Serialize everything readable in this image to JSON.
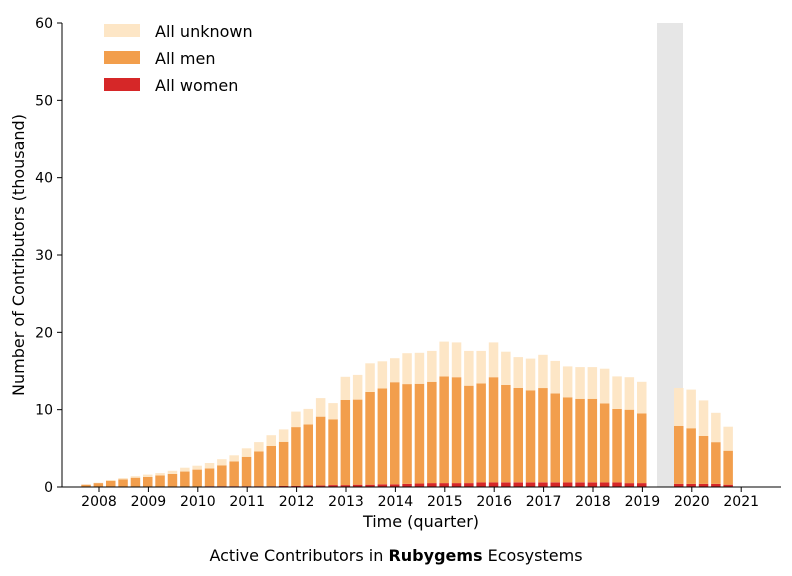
{
  "caption": {
    "prefix": "Active Contributors in ",
    "ecosystem": "Rubygems",
    "suffix": " Ecosystems"
  },
  "chart_data": {
    "type": "bar",
    "stacked": true,
    "xlabel": "Time (quarter)",
    "ylabel": "Number of Contributors (thousand)",
    "ylim": [
      0,
      60
    ],
    "yticks": [
      0,
      10,
      20,
      30,
      40,
      50,
      60
    ],
    "xticks": [
      "2008",
      "2009",
      "2010",
      "2011",
      "2012",
      "2013",
      "2014",
      "2015",
      "2016",
      "2017",
      "2018",
      "2019",
      "2020",
      "2021"
    ],
    "grid": false,
    "legend_position": "top-left",
    "shaded_gap": {
      "from": "2019-Q2",
      "to": "2019-Q4"
    },
    "categories": [
      "2008-Q1",
      "2008-Q2",
      "2008-Q3",
      "2008-Q4",
      "2009-Q1",
      "2009-Q2",
      "2009-Q3",
      "2009-Q4",
      "2010-Q1",
      "2010-Q2",
      "2010-Q3",
      "2010-Q4",
      "2011-Q1",
      "2011-Q2",
      "2011-Q3",
      "2011-Q4",
      "2012-Q1",
      "2012-Q2",
      "2012-Q3",
      "2012-Q4",
      "2013-Q1",
      "2013-Q2",
      "2013-Q3",
      "2013-Q4",
      "2014-Q1",
      "2014-Q2",
      "2014-Q3",
      "2014-Q4",
      "2015-Q1",
      "2015-Q2",
      "2015-Q3",
      "2015-Q4",
      "2016-Q1",
      "2016-Q2",
      "2016-Q3",
      "2016-Q4",
      "2017-Q1",
      "2017-Q2",
      "2017-Q3",
      "2017-Q4",
      "2018-Q1",
      "2018-Q2",
      "2018-Q3",
      "2018-Q4",
      "2019-Q1",
      "2019-Q2",
      "2020-Q1",
      "2020-Q2",
      "2020-Q3",
      "2020-Q4",
      "2021-Q1"
    ],
    "series": [
      {
        "name": "All women",
        "color": "#d62728",
        "values": [
          0.0,
          0.0,
          0.0,
          0.0,
          0.0,
          0.0,
          0.0,
          0.0,
          0.0,
          0.05,
          0.1,
          0.1,
          0.1,
          0.1,
          0.1,
          0.1,
          0.15,
          0.15,
          0.2,
          0.2,
          0.25,
          0.25,
          0.3,
          0.3,
          0.35,
          0.35,
          0.4,
          0.45,
          0.5,
          0.5,
          0.5,
          0.5,
          0.6,
          0.6,
          0.6,
          0.6,
          0.6,
          0.6,
          0.6,
          0.6,
          0.6,
          0.6,
          0.6,
          0.6,
          0.5,
          0.5,
          0.4,
          0.4,
          0.4,
          0.4,
          0.3
        ]
      },
      {
        "name": "All men",
        "color": "#f29e4c",
        "values": [
          0.3,
          0.5,
          0.8,
          1.0,
          1.2,
          1.3,
          1.5,
          1.7,
          2.0,
          2.2,
          2.3,
          2.7,
          3.2,
          3.8,
          4.5,
          5.2,
          5.7,
          7.6,
          7.9,
          8.9,
          8.5,
          11.0,
          11.0,
          12.0,
          12.4,
          13.2,
          12.9,
          12.9,
          13.1,
          13.8,
          13.7,
          12.6,
          12.8,
          13.6,
          12.6,
          12.2,
          11.9,
          12.2,
          11.5,
          11.0,
          10.8,
          10.8,
          10.2,
          9.5,
          9.5,
          9.0,
          7.5,
          7.2,
          6.2,
          5.4,
          4.4
        ]
      },
      {
        "name": "All unknown",
        "color": "#fde6c6",
        "values": [
          0.0,
          0.05,
          0.1,
          0.15,
          0.2,
          0.3,
          0.3,
          0.4,
          0.5,
          0.5,
          0.7,
          0.8,
          0.8,
          1.1,
          1.2,
          1.4,
          1.6,
          2.0,
          2.0,
          2.4,
          2.1,
          3.0,
          3.2,
          3.7,
          3.5,
          3.1,
          4.0,
          4.0,
          4.0,
          4.5,
          4.5,
          4.5,
          4.2,
          4.5,
          4.3,
          4.0,
          4.1,
          4.3,
          4.2,
          4.0,
          4.1,
          4.1,
          4.5,
          4.2,
          4.2,
          4.1,
          4.9,
          5.0,
          4.6,
          3.8,
          3.1
        ]
      }
    ]
  }
}
